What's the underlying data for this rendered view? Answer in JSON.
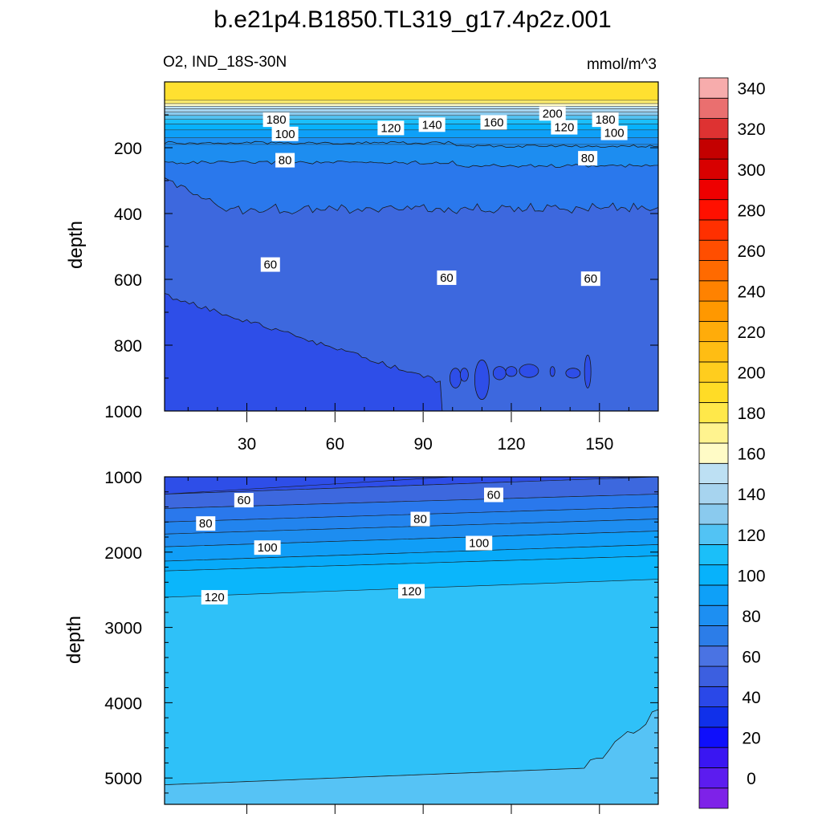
{
  "chart_data": {
    "type": "contour",
    "title": "b.e21p4.B1850.TL319_g17.4p2z.001",
    "variable_label": "O2, IND_18S-30N",
    "units": "mmol/m^3",
    "x": {
      "ticks": [
        30,
        60,
        90,
        120,
        150
      ],
      "range": [
        2,
        170
      ]
    },
    "panels": [
      {
        "ylabel": "depth",
        "yticks": [
          200,
          400,
          600,
          800,
          1000
        ],
        "yrange": [
          0,
          1000
        ],
        "y_inverted": true,
        "contour_labels": [
          {
            "text": "200",
            "x": 134,
            "y": 96
          },
          {
            "text": "180",
            "x": 40,
            "y": 115
          },
          {
            "text": "180",
            "x": 152,
            "y": 115
          },
          {
            "text": "160",
            "x": 114,
            "y": 123
          },
          {
            "text": "140",
            "x": 93,
            "y": 130
          },
          {
            "text": "120",
            "x": 79,
            "y": 140
          },
          {
            "text": "120",
            "x": 138,
            "y": 138
          },
          {
            "text": "100",
            "x": 43,
            "y": 158
          },
          {
            "text": "100",
            "x": 155,
            "y": 155
          },
          {
            "text": "80",
            "x": 43,
            "y": 238
          },
          {
            "text": "80",
            "x": 146,
            "y": 232
          },
          {
            "text": "60",
            "x": 38,
            "y": 555
          },
          {
            "text": "60",
            "x": 98,
            "y": 595
          },
          {
            "text": "60",
            "x": 147,
            "y": 598
          }
        ]
      },
      {
        "ylabel": "depth",
        "yticks": [
          1000,
          2000,
          3000,
          4000,
          5000
        ],
        "yrange": [
          1000,
          5350
        ],
        "y_inverted": true,
        "contour_labels": [
          {
            "text": "60",
            "x": 29,
            "y": 1310
          },
          {
            "text": "60",
            "x": 114,
            "y": 1240
          },
          {
            "text": "80",
            "x": 16,
            "y": 1620
          },
          {
            "text": "80",
            "x": 89,
            "y": 1560
          },
          {
            "text": "100",
            "x": 37,
            "y": 1940
          },
          {
            "text": "100",
            "x": 109,
            "y": 1880
          },
          {
            "text": "120",
            "x": 19,
            "y": 2600
          },
          {
            "text": "120",
            "x": 86,
            "y": 2520
          }
        ]
      }
    ],
    "colorbar": {
      "labels": [
        0,
        20,
        40,
        60,
        80,
        100,
        120,
        140,
        160,
        180,
        200,
        220,
        240,
        260,
        280,
        300,
        320,
        340
      ],
      "levels_min": -10,
      "levels_max": 350,
      "step": 10,
      "colors": [
        "#7e22e8",
        "#5c1cef",
        "#3a16f2",
        "#0f0ffb",
        "#1030ea",
        "#2a48e8",
        "#3c5fe0",
        "#4a73e3",
        "#2c7de8",
        "#1d8ff2",
        "#0ea0f8",
        "#07b2fb",
        "#1bbff9",
        "#52c3f4",
        "#8acaee",
        "#a7d4ef",
        "#bde0f3",
        "#fffbc6",
        "#fff38f",
        "#ffe84a",
        "#ffdc26",
        "#ffcd1e",
        "#ffbd13",
        "#ffac0a",
        "#ff9800",
        "#ff8200",
        "#ff6a00",
        "#ff4e00",
        "#ff3000",
        "#ff1000",
        "#ee0000",
        "#d80000",
        "#c40000",
        "#de3232",
        "#ea6f6f",
        "#f7acac"
      ]
    },
    "fill_colors": {
      "top_band": "#ffe030",
      "v60_80": "#2a78ec",
      "v80_100": "#1d8df0",
      "below60": "#3d68de",
      "below40": "#2e4ee8",
      "deep_120_140": "#2fc1f8",
      "deep_140": "#56c3f5",
      "deep_100_120": "#0bb6fb"
    }
  }
}
